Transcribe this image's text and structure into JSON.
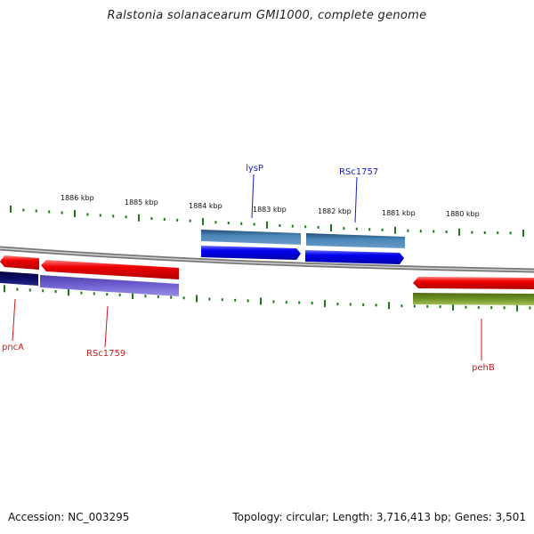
{
  "title": "Ralstonia solanacearum GMI1000, complete genome",
  "footer": {
    "accession": "Accession: NC_003295",
    "topology": "Topology: circular; Length: 3,716,413 bp; Genes: 3,501"
  },
  "scale": {
    "kbp_labels": [
      "1886 kbp",
      "1885 kbp",
      "1884 kbp",
      "1883 kbp",
      "1882 kbp",
      "1881 kbp",
      "1880 kbp"
    ]
  },
  "genes": [
    {
      "name": "lysP",
      "strand": "forward",
      "label_color": "#1a1acc"
    },
    {
      "name": "RSc1757",
      "strand": "forward",
      "label_color": "#1a1acc"
    },
    {
      "name": "pncA",
      "strand": "reverse",
      "label_color": "#cc1a1a"
    },
    {
      "name": "RSc1759",
      "strand": "reverse",
      "label_color": "#cc1a1a"
    },
    {
      "name": "pehB",
      "strand": "reverse",
      "label_color": "#cc1a1a"
    }
  ],
  "colors": {
    "forward_cds": "#0000ee",
    "forward_gene": "#3a6e9a",
    "reverse_cds": "#ee0000",
    "reverse_gene_dark": "#0b0b66",
    "reverse_gene_purple": "#6a5acd",
    "reverse_gene_olive": "#6b8e23",
    "tick": "#1a7a1a",
    "backbone": "#888888"
  }
}
